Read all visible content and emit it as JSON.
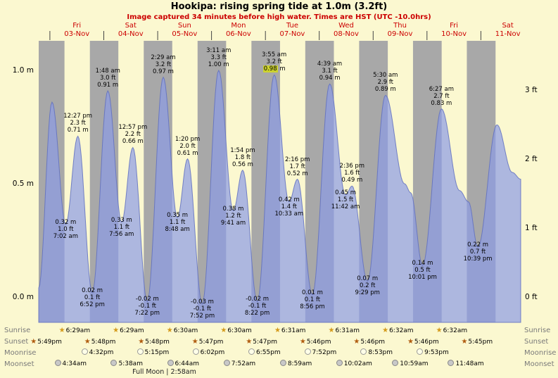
{
  "colors": {
    "background": "#fbf8d0",
    "night_band": "#a8a8a8",
    "tide_fill": "#8c9be6",
    "tide_line": "#6070c0",
    "heading_red": "#cc0000",
    "highlight": "#ccd22e",
    "sunrise_star": "#d49a1a",
    "sunset_star": "#b05c10",
    "moonrise_fill": "#ffffe8",
    "moonset_fill": "#c8c8c8"
  },
  "chart_data": {
    "type": "area",
    "title": "Hookipa: rising  spring tide at 1.0m (3.2ft)",
    "subtitle": "Image captured 34 minutes before high water. Times are HST (UTC -10.0hrs)",
    "ylabel_left": "m",
    "ylabel_right": "ft",
    "ylim_m": [
      -0.15,
      1.15
    ],
    "grid": false,
    "days": [
      {
        "name": "Fri",
        "date": "03-Nov"
      },
      {
        "name": "Sat",
        "date": "04-Nov"
      },
      {
        "name": "Sun",
        "date": "05-Nov"
      },
      {
        "name": "Mon",
        "date": "06-Nov"
      },
      {
        "name": "Tue",
        "date": "07-Nov"
      },
      {
        "name": "Wed",
        "date": "08-Nov"
      },
      {
        "name": "Thu",
        "date": "09-Nov"
      },
      {
        "name": "Fri",
        "date": "10-Nov"
      },
      {
        "name": "Sat",
        "date": "11-Nov"
      }
    ],
    "y_ticks_left": [
      {
        "label": "1.0 m",
        "m": 1.0
      },
      {
        "label": "0.5 m",
        "m": 0.5
      },
      {
        "label": "0.0 m",
        "m": 0.0
      }
    ],
    "y_ticks_right": [
      {
        "label": "3 ft",
        "ft": 3
      },
      {
        "label": "2 ft",
        "ft": 2
      },
      {
        "label": "1 ft",
        "ft": 1
      },
      {
        "label": "0 ft",
        "ft": 0
      }
    ],
    "tide_events": [
      {
        "day": -1,
        "time": "7:00 pm",
        "m": 0.04
      },
      {
        "day": 0,
        "time": "12:55 am",
        "m": 0.86
      },
      {
        "day": 0,
        "time": "7:02 am",
        "m": 0.32,
        "ft": 1.0,
        "kind": "low",
        "labels": [
          "0.32 m",
          "1.0 ft",
          "7:02 am"
        ]
      },
      {
        "day": 0,
        "time": "12:27 pm",
        "m": 0.71,
        "ft": 2.3,
        "kind": "high",
        "labels": [
          "12:27 pm",
          "2.3 ft",
          "0.71 m"
        ]
      },
      {
        "day": 0,
        "time": "6:52 pm",
        "m": 0.02,
        "ft": 0.1,
        "kind": "low",
        "labels": [
          "0.02 m",
          "0.1 ft",
          "6:52 pm"
        ]
      },
      {
        "day": 1,
        "time": "1:48 am",
        "m": 0.91,
        "ft": 3.0,
        "kind": "high",
        "labels": [
          "1:48 am",
          "3.0 ft",
          "0.91 m"
        ]
      },
      {
        "day": 1,
        "time": "7:56 am",
        "m": 0.33,
        "ft": 1.1,
        "kind": "low",
        "labels": [
          "0.33 m",
          "1.1 ft",
          "7:56 am"
        ]
      },
      {
        "day": 1,
        "time": "12:57 pm",
        "m": 0.66,
        "ft": 2.2,
        "kind": "high",
        "labels": [
          "12:57 pm",
          "2.2 ft",
          "0.66 m"
        ]
      },
      {
        "day": 1,
        "time": "7:22 pm",
        "m": -0.02,
        "ft": -0.1,
        "kind": "low",
        "labels": [
          "-0.02 m",
          "-0.1 ft",
          "7:22 pm"
        ]
      },
      {
        "day": 2,
        "time": "2:29 am",
        "m": 0.97,
        "ft": 3.2,
        "kind": "high",
        "labels": [
          "2:29 am",
          "3.2 ft",
          "0.97 m"
        ]
      },
      {
        "day": 2,
        "time": "8:48 am",
        "m": 0.35,
        "ft": 1.1,
        "kind": "low",
        "labels": [
          "0.35 m",
          "1.1 ft",
          "8:48 am"
        ]
      },
      {
        "day": 2,
        "time": "1:20 pm",
        "m": 0.61,
        "ft": 2.0,
        "kind": "high",
        "labels": [
          "1:20 pm",
          "2.0 ft",
          "0.61 m"
        ]
      },
      {
        "day": 2,
        "time": "7:52 pm",
        "m": -0.03,
        "ft": -0.1,
        "kind": "low",
        "labels": [
          "-0.03 m",
          "-0.1 ft",
          "7:52 pm"
        ]
      },
      {
        "day": 3,
        "time": "3:11 am",
        "m": 1.0,
        "ft": 3.3,
        "kind": "high",
        "labels": [
          "3:11 am",
          "3.3 ft",
          "1.00 m"
        ]
      },
      {
        "day": 3,
        "time": "9:41 am",
        "m": 0.38,
        "ft": 1.2,
        "kind": "low",
        "labels": [
          "0.38 m",
          "1.2 ft",
          "9:41 am"
        ]
      },
      {
        "day": 3,
        "time": "1:54 pm",
        "m": 0.56,
        "ft": 1.8,
        "kind": "high",
        "labels": [
          "1:54 pm",
          "1.8 ft",
          "0.56 m"
        ]
      },
      {
        "day": 3,
        "time": "8:22 pm",
        "m": -0.02,
        "ft": -0.1,
        "kind": "low",
        "labels": [
          "-0.02 m",
          "-0.1 ft",
          "8:22 pm"
        ]
      },
      {
        "day": 4,
        "time": "3:55 am",
        "m": 0.98,
        "ft": 3.2,
        "kind": "high",
        "labels": [
          "3:55 am",
          "3.2 ft",
          "0.98 m"
        ],
        "highlight": true
      },
      {
        "day": 4,
        "time": "10:33 am",
        "m": 0.42,
        "ft": 1.4,
        "kind": "low",
        "labels": [
          "0.42 m",
          "1.4 ft",
          "10:33 am"
        ]
      },
      {
        "day": 4,
        "time": "2:16 pm",
        "m": 0.52,
        "ft": 1.7,
        "kind": "high",
        "labels": [
          "2:16 pm",
          "1.7 ft",
          "0.52 m"
        ]
      },
      {
        "day": 4,
        "time": "8:56 pm",
        "m": 0.01,
        "ft": 0.1,
        "kind": "low",
        "labels": [
          "0.01 m",
          "0.1 ft",
          "8:56 pm"
        ]
      },
      {
        "day": 5,
        "time": "4:39 am",
        "m": 0.94,
        "ft": 3.1,
        "kind": "high",
        "labels": [
          "4:39 am",
          "3.1 ft",
          "0.94 m"
        ]
      },
      {
        "day": 5,
        "time": "11:42 am",
        "m": 0.45,
        "ft": 1.5,
        "kind": "low",
        "labels": [
          "0.45 m",
          "1.5 ft",
          "11:42 am"
        ]
      },
      {
        "day": 5,
        "time": "2:36 pm",
        "m": 0.49,
        "ft": 1.6,
        "kind": "high",
        "labels": [
          "2:36 pm",
          "1.6 ft",
          "0.49 m"
        ]
      },
      {
        "day": 5,
        "time": "9:29 pm",
        "m": 0.07,
        "ft": 0.2,
        "kind": "low",
        "labels": [
          "0.07 m",
          "0.2 ft",
          "9:29 pm"
        ]
      },
      {
        "day": 6,
        "time": "5:30 am",
        "m": 0.89,
        "ft": 2.9,
        "kind": "high",
        "labels": [
          "5:30 am",
          "2.9 ft",
          "0.89 m"
        ]
      },
      {
        "day": 6,
        "time": "2:00 pm",
        "m": 0.5
      },
      {
        "day": 6,
        "time": "4:45 pm",
        "m": 0.46
      },
      {
        "day": 6,
        "time": "10:01 pm",
        "m": 0.14,
        "ft": 0.5,
        "kind": "low",
        "labels": [
          "0.14 m",
          "0.5 ft",
          "10:01 pm"
        ]
      },
      {
        "day": 7,
        "time": "6:27 am",
        "m": 0.83,
        "ft": 2.7,
        "kind": "high",
        "labels": [
          "6:27 am",
          "2.7 ft",
          "0.83 m"
        ]
      },
      {
        "day": 7,
        "time": "2:30 pm",
        "m": 0.47
      },
      {
        "day": 7,
        "time": "6:30 pm",
        "m": 0.42
      },
      {
        "day": 7,
        "time": "10:39 pm",
        "m": 0.22,
        "ft": 0.7,
        "kind": "low",
        "labels": [
          "0.22 m",
          "0.7 ft",
          "10:39 pm"
        ]
      },
      {
        "day": 8,
        "time": "7:10 am",
        "m": 0.76
      },
      {
        "day": 8,
        "time": "2:00 pm",
        "m": 0.55
      },
      {
        "day": 8,
        "time": "5:45 pm",
        "m": 0.52
      }
    ]
  },
  "astro": {
    "rows": [
      {
        "name": "sunrise",
        "label": "Sunrise",
        "events": [
          {
            "day": 0,
            "time": "6:29am"
          },
          {
            "day": 1,
            "time": "6:29am"
          },
          {
            "day": 2,
            "time": "6:30am"
          },
          {
            "day": 3,
            "time": "6:30am"
          },
          {
            "day": 4,
            "time": "6:31am"
          },
          {
            "day": 5,
            "time": "6:31am"
          },
          {
            "day": 6,
            "time": "6:32am"
          },
          {
            "day": 7,
            "time": "6:32am"
          }
        ]
      },
      {
        "name": "sunset",
        "label": "Sunset",
        "events": [
          {
            "day": -1,
            "time": "5:49pm"
          },
          {
            "day": 0,
            "time": "5:48pm"
          },
          {
            "day": 1,
            "time": "5:48pm"
          },
          {
            "day": 2,
            "time": "5:47pm"
          },
          {
            "day": 3,
            "time": "5:47pm"
          },
          {
            "day": 4,
            "time": "5:46pm"
          },
          {
            "day": 5,
            "time": "5:46pm"
          },
          {
            "day": 6,
            "time": "5:46pm"
          },
          {
            "day": 7,
            "time": "5:45pm"
          }
        ]
      },
      {
        "name": "moonrise",
        "label": "Moonrise",
        "events": [
          {
            "day": 0,
            "time": "4:32pm"
          },
          {
            "day": 1,
            "time": "5:15pm"
          },
          {
            "day": 2,
            "time": "6:02pm"
          },
          {
            "day": 3,
            "time": "6:55pm"
          },
          {
            "day": 4,
            "time": "7:52pm"
          },
          {
            "day": 5,
            "time": "8:53pm"
          },
          {
            "day": 6,
            "time": "9:53pm"
          }
        ]
      },
      {
        "name": "moonset",
        "label": "Moonset",
        "events": [
          {
            "day": 0,
            "time": "4:34am"
          },
          {
            "day": 1,
            "time": "5:38am"
          },
          {
            "day": 2,
            "time": "6:44am"
          },
          {
            "day": 3,
            "time": "7:52am"
          },
          {
            "day": 4,
            "time": "8:59am"
          },
          {
            "day": 5,
            "time": "10:02am"
          },
          {
            "day": 6,
            "time": "10:59am"
          },
          {
            "day": 7,
            "time": "11:48am"
          }
        ]
      }
    ],
    "footer": {
      "text": "Full Moon | 2:58am",
      "day": 2,
      "time": "2:58am"
    }
  }
}
